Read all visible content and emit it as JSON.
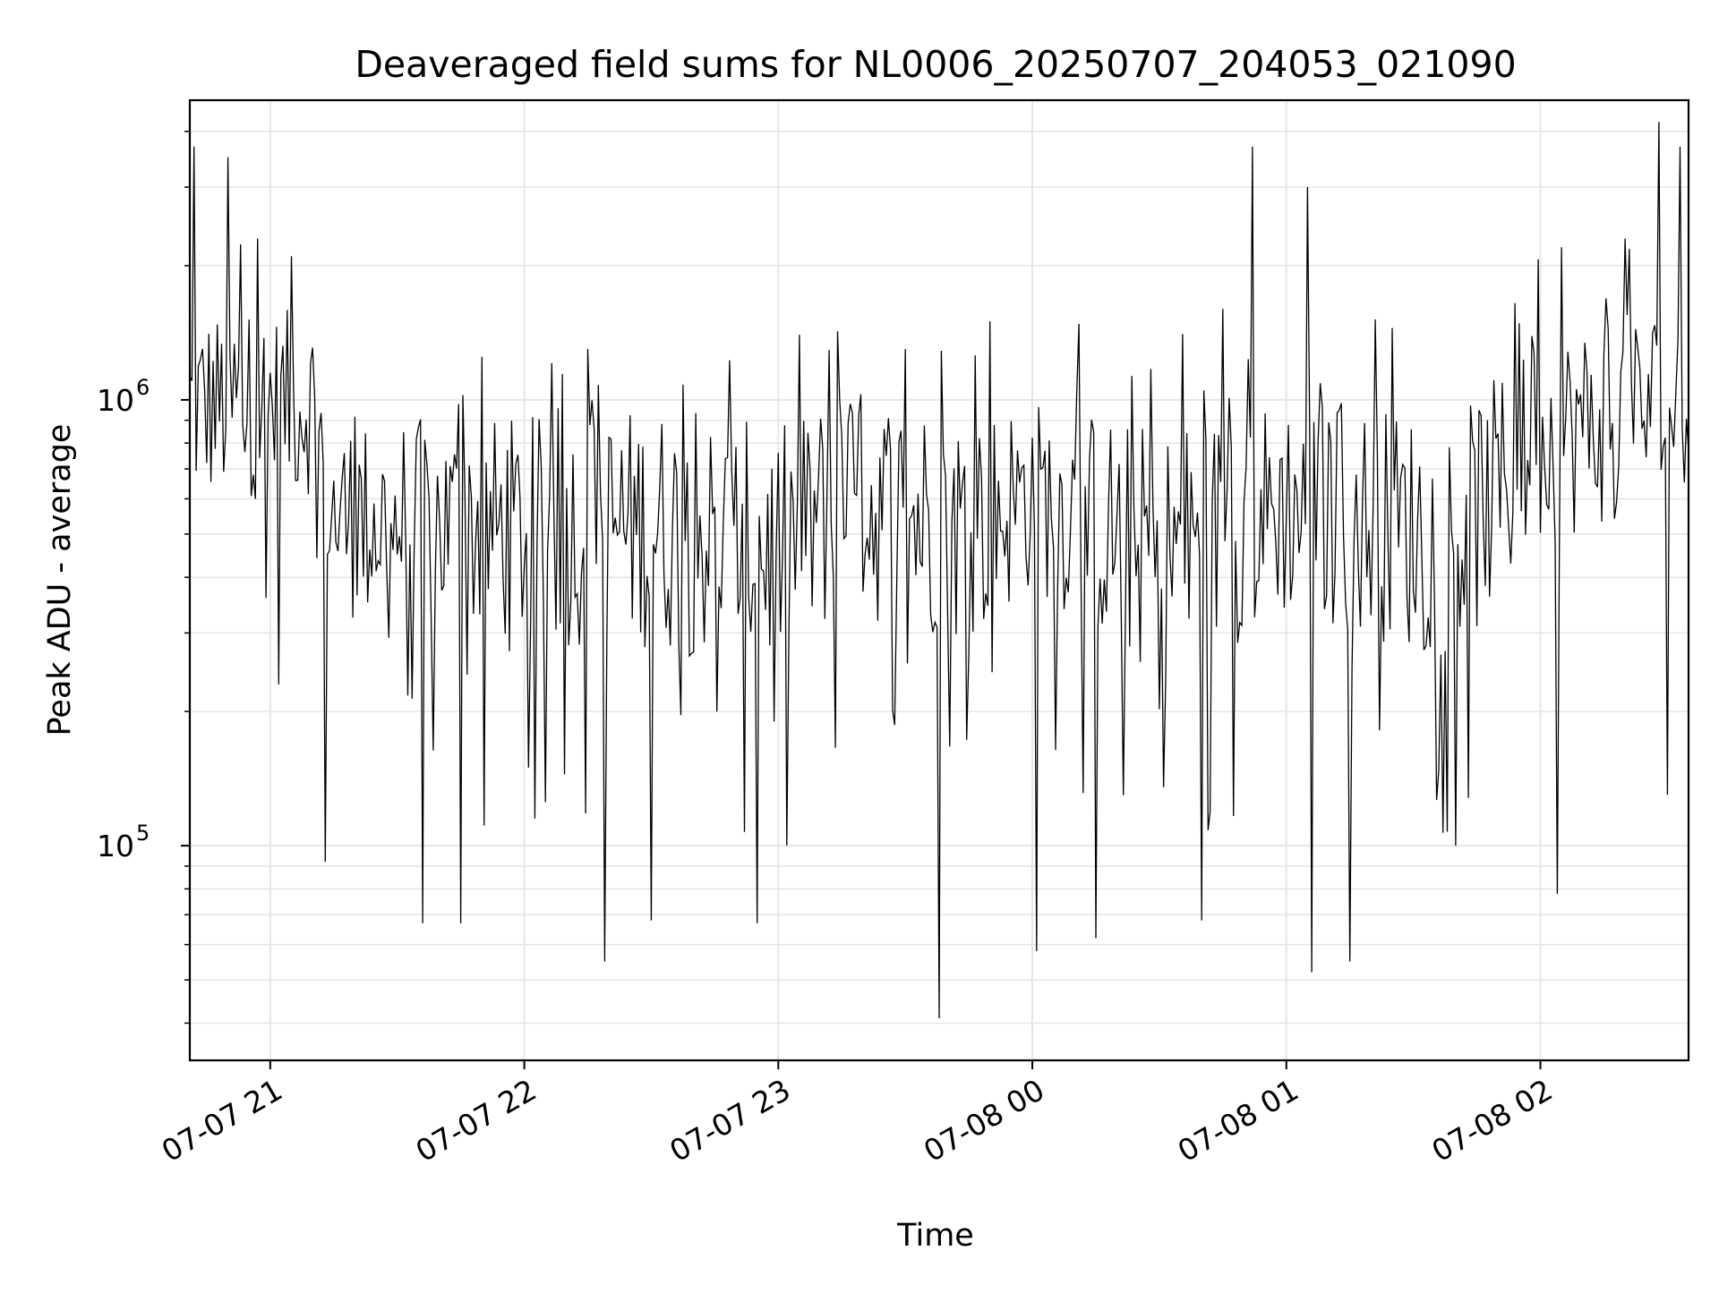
{
  "chart_data": {
    "type": "line",
    "title": "Deaveraged field sums for NL0006_20250707_204053_021090",
    "xlabel": "Time",
    "ylabel": "Peak ADU - average",
    "xscale": "time",
    "yscale": "log",
    "grid": true,
    "legend": "none",
    "xlim": [
      "2025-07-07 20:41",
      "2025-07-08 02:35"
    ],
    "ylim": [
      33000,
      4700000
    ],
    "x_ticks": [
      "07-07 21",
      "07-07 22",
      "07-07 23",
      "07-08 00",
      "07-08 01",
      "07-08 02"
    ],
    "y_ticks": [
      {
        "base": "10",
        "exp": "5",
        "value": 100000
      },
      {
        "base": "10",
        "exp": "6",
        "value": 1000000
      }
    ],
    "line_color": "#000000",
    "grid_color": "#e6e6e6",
    "series": [
      {
        "sampling": "one value every 0.5 min from 2025-07-07 20:41",
        "envelope": [
          {
            "t": "2025-07-07 20:41",
            "low": 620000,
            "high": 1500000
          },
          {
            "t": "2025-07-07 21:10",
            "low": 650000,
            "high": 1500000
          },
          {
            "t": "2025-07-07 21:15",
            "low": 350000,
            "high": 850000
          },
          {
            "t": "2025-07-07 22:00",
            "low": 300000,
            "high": 850000
          },
          {
            "t": "2025-07-07 22:30",
            "low": 300000,
            "high": 900000
          },
          {
            "t": "2025-07-07 23:00",
            "low": 260000,
            "high": 800000
          },
          {
            "t": "2025-07-07 23:15",
            "low": 350000,
            "high": 1000000
          },
          {
            "t": "2025-07-07 23:45",
            "low": 300000,
            "high": 900000
          },
          {
            "t": "2025-07-08 00:00",
            "low": 400000,
            "high": 950000
          },
          {
            "t": "2025-07-08 00:30",
            "low": 250000,
            "high": 800000
          },
          {
            "t": "2025-07-08 01:00",
            "low": 350000,
            "high": 950000
          },
          {
            "t": "2025-07-08 01:40",
            "low": 280000,
            "high": 850000
          },
          {
            "t": "2025-07-08 02:00",
            "low": 500000,
            "high": 1300000
          },
          {
            "t": "2025-07-08 02:35",
            "low": 650000,
            "high": 1600000
          }
        ],
        "peaks": [
          {
            "t": "2025-07-07 20:42",
            "value": 3700000
          },
          {
            "t": "2025-07-07 20:50",
            "value": 3500000
          },
          {
            "t": "2025-07-07 20:57",
            "value": 2300000
          },
          {
            "t": "2025-07-07 21:05",
            "value": 2100000
          },
          {
            "t": "2025-07-07 21:50",
            "value": 1250000
          },
          {
            "t": "2025-07-07 22:15",
            "value": 1300000
          },
          {
            "t": "2025-07-07 23:05",
            "value": 1400000
          },
          {
            "t": "2025-07-07 23:30",
            "value": 1300000
          },
          {
            "t": "2025-07-07 23:50",
            "value": 1500000
          },
          {
            "t": "2025-07-08 00:15",
            "value": 1400000
          },
          {
            "t": "2025-07-08 00:45",
            "value": 1600000
          },
          {
            "t": "2025-07-08 00:52",
            "value": 3700000
          },
          {
            "t": "2025-07-08 01:05",
            "value": 3000000
          },
          {
            "t": "2025-07-08 01:25",
            "value": 1450000
          },
          {
            "t": "2025-07-08 02:05",
            "value": 2200000
          },
          {
            "t": "2025-07-08 02:20",
            "value": 2300000
          },
          {
            "t": "2025-07-08 02:28",
            "value": 4200000
          },
          {
            "t": "2025-07-08 02:33",
            "value": 3700000
          }
        ],
        "dips": [
          {
            "t": "2025-07-07 21:02",
            "value": 230000
          },
          {
            "t": "2025-07-07 21:13",
            "value": 92000
          },
          {
            "t": "2025-07-07 21:36",
            "value": 67000
          },
          {
            "t": "2025-07-07 21:45",
            "value": 67000
          },
          {
            "t": "2025-07-07 22:19",
            "value": 55000
          },
          {
            "t": "2025-07-07 22:30",
            "value": 68000
          },
          {
            "t": "2025-07-07 22:55",
            "value": 67000
          },
          {
            "t": "2025-07-07 23:38",
            "value": 41000
          },
          {
            "t": "2025-07-08 00:01",
            "value": 58000
          },
          {
            "t": "2025-07-08 00:15",
            "value": 62000
          },
          {
            "t": "2025-07-08 00:40",
            "value": 68000
          },
          {
            "t": "2025-07-08 01:06",
            "value": 52000
          },
          {
            "t": "2025-07-08 01:15",
            "value": 55000
          },
          {
            "t": "2025-07-08 01:40",
            "value": 100000
          },
          {
            "t": "2025-07-08 02:04",
            "value": 78000
          },
          {
            "t": "2025-07-08 02:30",
            "value": 130000
          }
        ]
      }
    ]
  }
}
